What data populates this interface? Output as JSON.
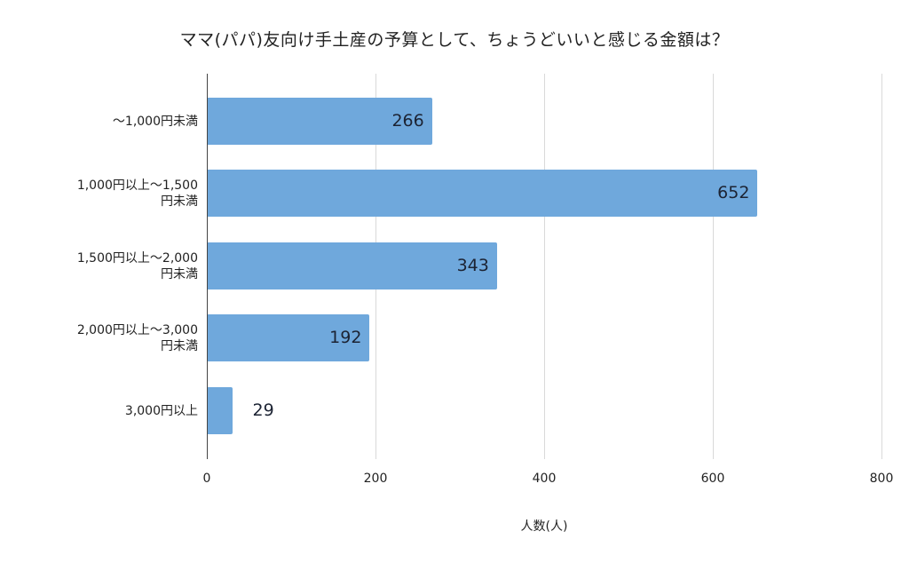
{
  "chart_data": {
    "type": "bar",
    "orientation": "horizontal",
    "title": "ママ(パパ)友向け手土産の予算として、ちょうどいいと感じる金額は？",
    "xlabel": "人数(人)",
    "ylabel": "",
    "categories": [
      "〜1,000円未満",
      "1,000円以上〜1,500円未満",
      "1,500円以上〜2,000円未満",
      "2,000円以上〜3,000円未満",
      "3,000円以上"
    ],
    "category_lines": [
      [
        "〜1,000円未満"
      ],
      [
        "1,000円以上〜1,500",
        "円未満"
      ],
      [
        "1,500円以上〜2,000",
        "円未満"
      ],
      [
        "2,000円以上〜3,000",
        "円未満"
      ],
      [
        "3,000円以上"
      ]
    ],
    "values": [
      266,
      652,
      343,
      192,
      29
    ],
    "value_labels": [
      "266",
      "652",
      "343",
      "192",
      "29"
    ],
    "xlim": [
      0,
      800
    ],
    "xticks": [
      "0",
      "200",
      "400",
      "600",
      "800"
    ],
    "grid": true,
    "legend": null,
    "bar_color": "#6fa8dc"
  }
}
